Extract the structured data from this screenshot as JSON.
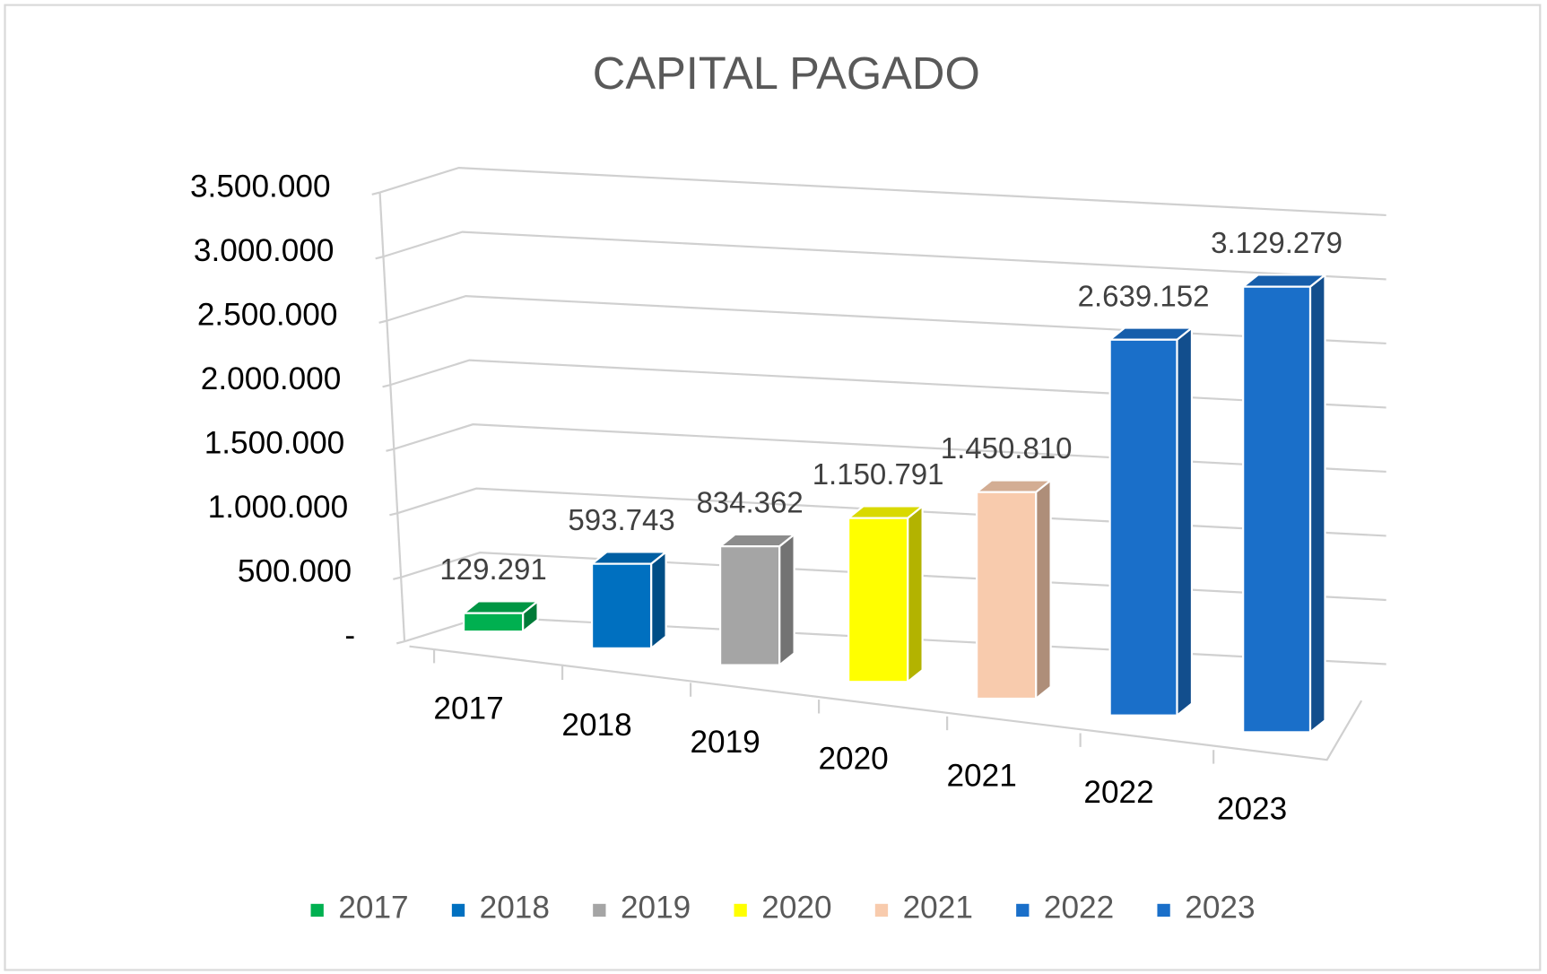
{
  "chart_data": {
    "type": "bar3d",
    "title": "CAPITAL PAGADO",
    "categories": [
      "2017",
      "2018",
      "2019",
      "2020",
      "2021",
      "2022",
      "2023"
    ],
    "values": [
      129291,
      593743,
      834362,
      1150791,
      1450810,
      2639152,
      3129279
    ],
    "value_labels": [
      "129.291",
      "593.743",
      "834.362",
      "1.150.791",
      "1.450.810",
      "2.639.152",
      "3.129.279"
    ],
    "colors": [
      "#00b050",
      "#0070c0",
      "#a5a5a5",
      "#ffff00",
      "#f8cbad",
      "#1a6fc9",
      "#1a6fc9"
    ],
    "ylim": [
      0,
      3500000
    ],
    "yticks": [
      {
        "value": 0,
        "label": "-"
      },
      {
        "value": 500000,
        "label": "500.000"
      },
      {
        "value": 1000000,
        "label": "1.000.000"
      },
      {
        "value": 1500000,
        "label": "1.500.000"
      },
      {
        "value": 2000000,
        "label": "2.000.000"
      },
      {
        "value": 2500000,
        "label": "2.500.000"
      },
      {
        "value": 3000000,
        "label": "3.000.000"
      },
      {
        "value": 3500000,
        "label": "3.500.000"
      }
    ],
    "grid": true,
    "legend": "bottom"
  }
}
